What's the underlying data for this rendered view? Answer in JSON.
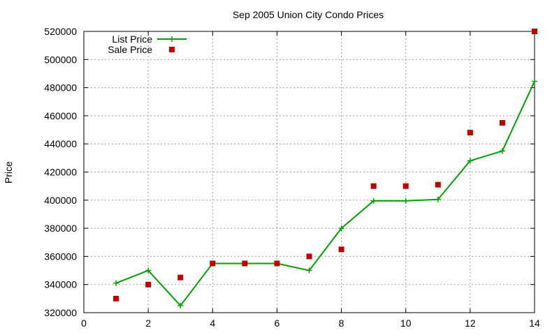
{
  "chart_data": {
    "type": "line",
    "title": "Sep 2005 Union City Condo Prices",
    "xlabel": "",
    "ylabel": "Price",
    "xlim": [
      0,
      14
    ],
    "ylim": [
      320000,
      520000
    ],
    "xticks": [
      0,
      2,
      4,
      6,
      8,
      10,
      12,
      14
    ],
    "yticks": [
      320000,
      340000,
      360000,
      380000,
      400000,
      420000,
      440000,
      460000,
      480000,
      500000,
      520000
    ],
    "grid": true,
    "legend_position": "top-left",
    "series": [
      {
        "name": "List Price",
        "style": "line-with-points",
        "color": "#00a000",
        "x": [
          1,
          2,
          3,
          4,
          5,
          6,
          7,
          8,
          9,
          10,
          11,
          12,
          13,
          14
        ],
        "y": [
          341000,
          350000,
          325000,
          355000,
          355000,
          355000,
          350000,
          380000,
          399500,
          399500,
          400500,
          428000,
          435000,
          484500
        ]
      },
      {
        "name": "Sale Price",
        "style": "points",
        "color": "#c00000",
        "x": [
          1,
          2,
          3,
          4,
          5,
          6,
          7,
          8,
          9,
          10,
          11,
          12,
          13,
          14
        ],
        "y": [
          330000,
          340000,
          345000,
          355000,
          355000,
          355000,
          360000,
          365000,
          410000,
          410000,
          411000,
          448000,
          455000,
          520000
        ]
      }
    ]
  }
}
